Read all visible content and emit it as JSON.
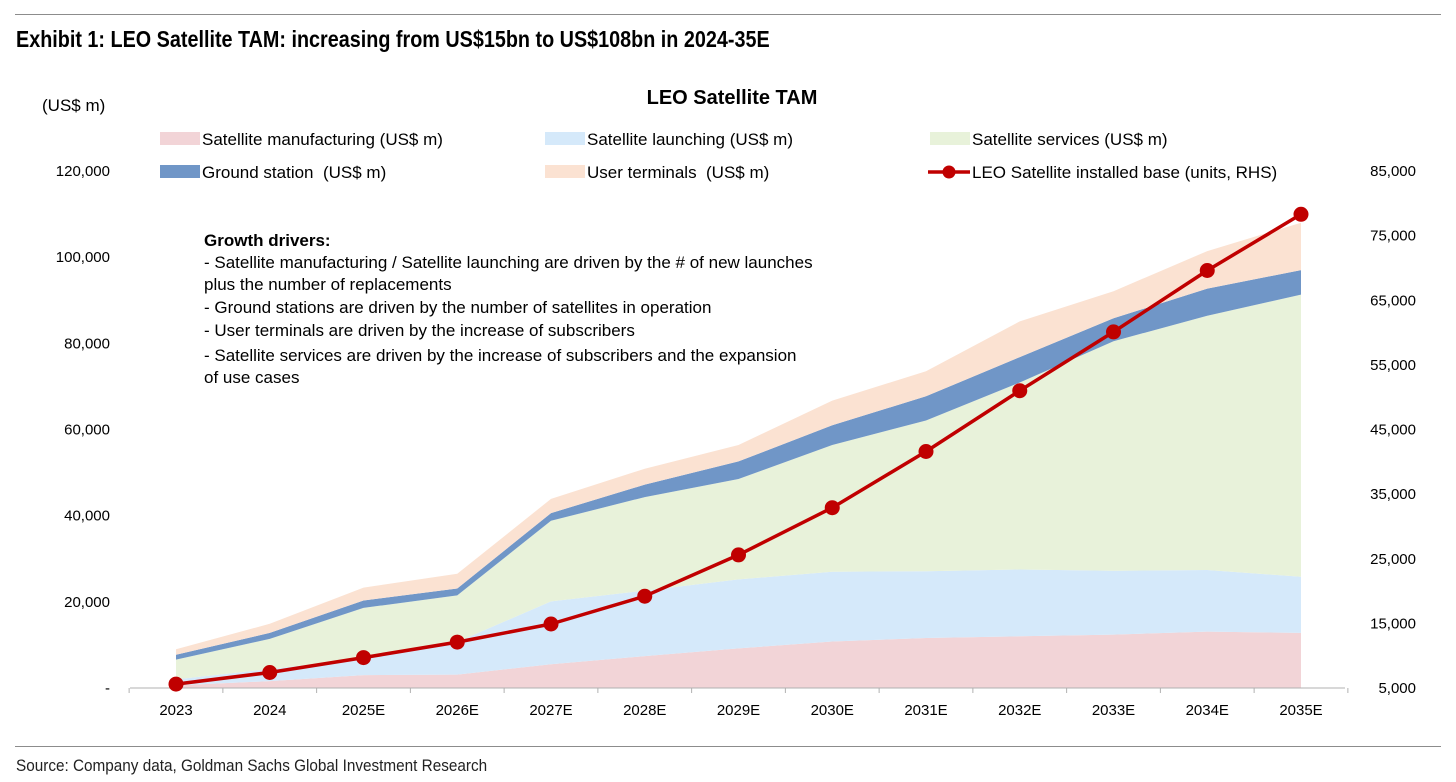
{
  "header": {
    "exhibit_title": "Exhibit 1: LEO Satellite TAM: increasing from US$15bn to US$108bn in 2024-35E"
  },
  "footer": {
    "source": "Source: Company data, Goldman Sachs Global Investment Research"
  },
  "chart_data": {
    "type": "area",
    "title": "LEO Satellite TAM",
    "ylabel": "(US$ m)",
    "categories": [
      "2023",
      "2024",
      "2025E",
      "2026E",
      "2027E",
      "2028E",
      "2029E",
      "2030E",
      "2031E",
      "2032E",
      "2033E",
      "2034E",
      "2035E"
    ],
    "ylim": [
      0,
      120000
    ],
    "y2lim": [
      5000,
      85000
    ],
    "y_ticks": [
      "-",
      "20,000",
      "40,000",
      "60,000",
      "80,000",
      "100,000",
      "120,000"
    ],
    "y2_ticks": [
      "5,000",
      "15,000",
      "25,000",
      "35,000",
      "45,000",
      "55,000",
      "65,000",
      "75,000",
      "85,000"
    ],
    "series": [
      {
        "name": "Satellite manufacturing (US$ m)",
        "kind": "stacked-area",
        "color": "#f2d4d7",
        "values": [
          600,
          1600,
          3000,
          3100,
          5500,
          7400,
          9200,
          10800,
          11600,
          12000,
          12400,
          13100,
          12800
        ]
      },
      {
        "name": "Satellite launching (US$ m)",
        "kind": "stacked-area",
        "color": "#d5e9fa",
        "values": [
          1400,
          2800,
          3800,
          7600,
          14600,
          15200,
          16000,
          16200,
          15500,
          15500,
          14800,
          14300,
          13000
        ]
      },
      {
        "name": "Satellite services (US$ m)",
        "kind": "stacked-area",
        "color": "#e8f2da",
        "values": [
          4600,
          7000,
          11800,
          10800,
          18700,
          21700,
          23300,
          29400,
          35000,
          43400,
          53300,
          59000,
          65500
        ]
      },
      {
        "name": "Ground station  (US$ m)",
        "kind": "stacked-area",
        "color": "#7096c7",
        "values": [
          1100,
          1400,
          1700,
          1600,
          1800,
          2900,
          4100,
          4600,
          5600,
          5900,
          5300,
          6300,
          5700
        ]
      },
      {
        "name": "User terminals  (US$ m)",
        "kind": "stacked-area",
        "color": "#fbe2d2",
        "values": [
          1300,
          2100,
          3000,
          3400,
          3300,
          3700,
          3800,
          5700,
          5800,
          8300,
          6300,
          8700,
          11000
        ]
      },
      {
        "name": "LEO Satellite installed base (units, RHS)",
        "kind": "line",
        "axis": "right",
        "color": "#c00000",
        "values": [
          5600,
          7400,
          9700,
          12100,
          14900,
          19200,
          25600,
          32900,
          41600,
          51000,
          60100,
          69600,
          78300
        ]
      }
    ],
    "annotation": {
      "heading": "Growth drivers:",
      "lines": [
        "- Satellite manufacturing / Satellite launching are driven by the # of new launches",
        "plus the number of replacements",
        "- Ground stations are driven by the number of satellites in operation",
        "- User terminals are driven by the increase of subscribers",
        "- Satellite services are driven by the increase of subscribers and the expansion",
        "of use cases"
      ]
    }
  }
}
